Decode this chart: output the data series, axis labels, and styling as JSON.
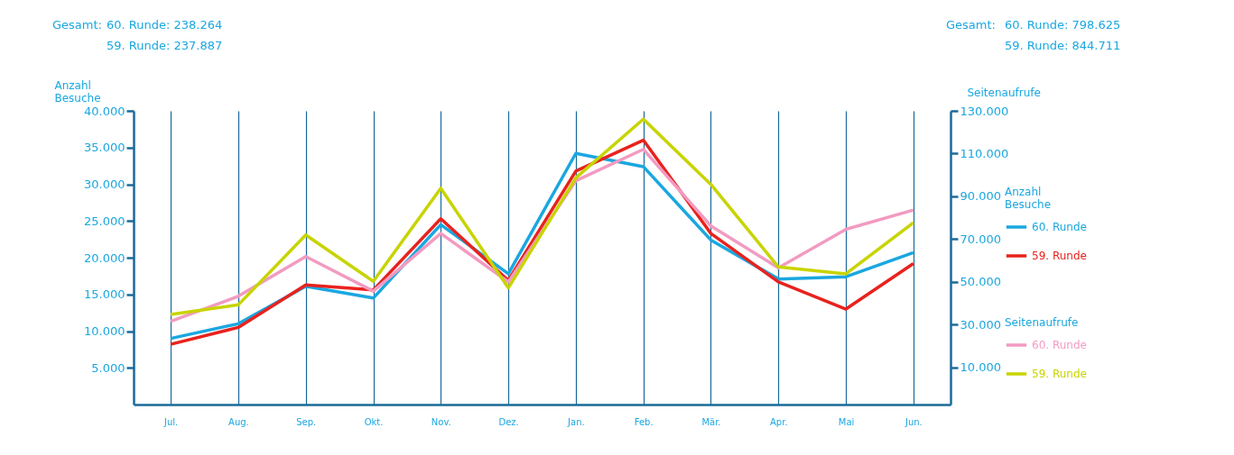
{
  "chart_data": {
    "type": "line",
    "categories": [
      "Jul.",
      "Aug.",
      "Sep.",
      "Okt.",
      "Nov.",
      "Dez.",
      "Jan.",
      "Feb.",
      "Mär.",
      "Apr.",
      "Mai",
      "Jun."
    ],
    "series": [
      {
        "name": "60. Runde",
        "color": "#1aa7e0",
        "values": [
          9000,
          11000,
          16100,
          14500,
          24500,
          17800,
          34200,
          32400,
          22400,
          17100,
          17400,
          20700
        ]
      },
      {
        "name": "59. Runde",
        "color": "#e8221e",
        "values": [
          8200,
          10500,
          16300,
          15600,
          25300,
          16900,
          31800,
          36000,
          23300,
          16700,
          13000,
          19200
        ]
      },
      {
        "name": "60. Runde",
        "axis": "y2",
        "color": "#f29bc1",
        "values": [
          31600,
          43300,
          61900,
          45700,
          72700,
          50000,
          97300,
          112000,
          76200,
          56600,
          74600,
          83600
        ]
      },
      {
        "name": "59. Runde",
        "axis": "y2",
        "color": "#c8d400",
        "values": [
          34800,
          39300,
          72000,
          50300,
          93800,
          47200,
          98700,
          126100,
          95600,
          57000,
          53800,
          77700
        ]
      }
    ],
    "ylabel": "Anzahl Besuche",
    "y2label": "Seitenaufrufe",
    "ylim": [
      0,
      40000
    ],
    "yticks": [
      {
        "value": 5000,
        "label": "5.000"
      },
      {
        "value": 10000,
        "label": "10.000"
      },
      {
        "value": 15000,
        "label": "15.000"
      },
      {
        "value": 20000,
        "label": "20.000"
      },
      {
        "value": 25000,
        "label": "25.000"
      },
      {
        "value": 30000,
        "label": "30.000"
      },
      {
        "value": 35000,
        "label": "35.000"
      },
      {
        "value": 40000,
        "label": "40.000"
      }
    ],
    "y2lim": [
      -7300,
      130000
    ],
    "y2ticks": [
      {
        "value": 10000,
        "label": "10.000"
      },
      {
        "value": 30000,
        "label": "30.000"
      },
      {
        "value": 50000,
        "label": "50.000"
      },
      {
        "value": 70000,
        "label": "70.000"
      },
      {
        "value": 90000,
        "label": "90.000"
      },
      {
        "value": 110000,
        "label": "110.000"
      },
      {
        "value": 130000,
        "label": "130.000"
      }
    ],
    "grid": "x",
    "legend": "right",
    "marker": "none",
    "line_style": "solid",
    "annotations": [
      "Gesamt:",
      "60. Runde: 238.264",
      "59. Runde: 237.887",
      "Gesamt:",
      "60. Runde: 798.625",
      "59. Runde: 844.711"
    ]
  }
}
